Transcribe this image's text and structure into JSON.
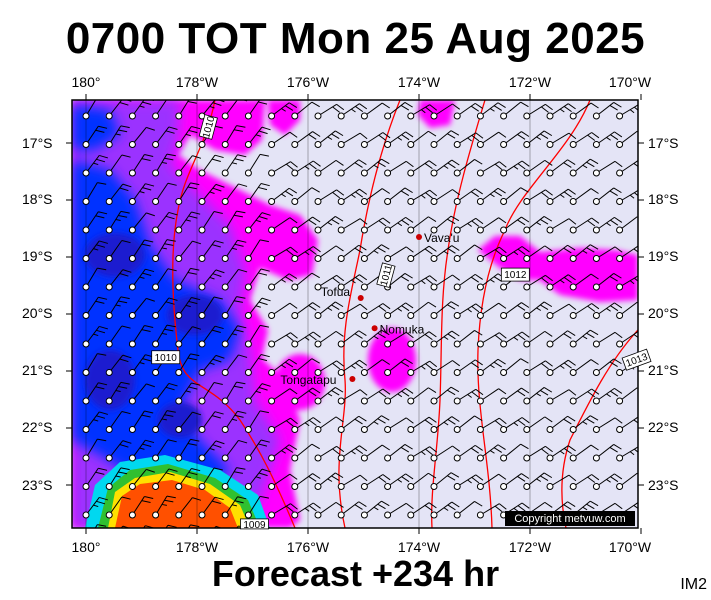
{
  "title": "0700 TOT Mon 25 Aug 2025",
  "footer": "Forecast +234 hr",
  "image_code": "IM2",
  "copyright": "Copyright metvuw.com",
  "lon_ticks": [
    "180°",
    "178°W",
    "176°W",
    "174°W",
    "172°W",
    "170°W"
  ],
  "lat_ticks": [
    "17°S",
    "18°S",
    "19°S",
    "20°S",
    "21°S",
    "22°S",
    "23°S"
  ],
  "places": [
    {
      "name": "Vava'u",
      "lon": -174.0,
      "lat": -18.65
    },
    {
      "name": "Tofua",
      "lon": -175.05,
      "lat": -19.72
    },
    {
      "name": "Nomuka",
      "lon": -174.8,
      "lat": -20.25
    },
    {
      "name": "Tongatapu",
      "lon": -175.2,
      "lat": -21.14
    }
  ],
  "isobars": [
    {
      "label": "1010",
      "lon": -177.8,
      "lat": -16.7
    },
    {
      "label": "1010",
      "lon": -178.6,
      "lat": -20.75
    },
    {
      "label": "1011",
      "lon": -174.6,
      "lat": -19.3
    },
    {
      "label": "1012",
      "lon": -172.3,
      "lat": -19.3
    },
    {
      "label": "1013",
      "lon": -170.1,
      "lat": -20.8
    },
    {
      "label": "1009",
      "lon": -177.0,
      "lat": -23.7
    }
  ],
  "colors": {
    "background": "#e4e4f6",
    "magenta": "#ff00ff",
    "violet": "#9b30ff",
    "blue": "#0033ff",
    "cyan": "#00d8f0",
    "green": "#30c030",
    "yellow": "#ffe000",
    "orange": "#ff5000",
    "isobar": "#ff0000",
    "place_dot": "#cc0000"
  }
}
